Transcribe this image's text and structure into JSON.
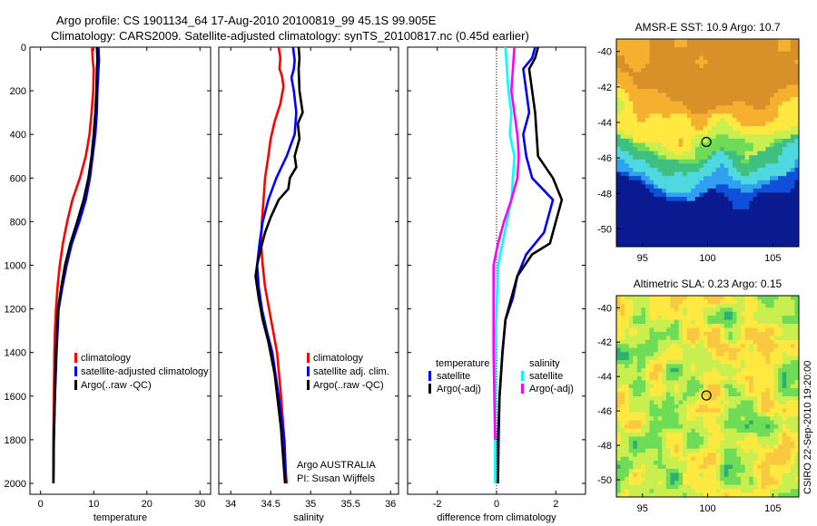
{
  "header": {
    "line1": "Argo profile: CS 1901134_64 17-Aug-2010 20100819_99 45.1S 99.905E",
    "line2": "Climatology: CARS2009. Satellite-adjusted climatology: synTS_20100817.nc (0.45d earlier)"
  },
  "credit": "Argo AUSTRALIA",
  "credit_pi": "PI: Susan Wijffels",
  "side_stamp": "CSIRO 22-Sep-2010 19:20:00",
  "chart_data": [
    {
      "type": "line",
      "xlabel": "temperature",
      "ylabel": "",
      "xlim": [
        -2,
        32
      ],
      "ylim": [
        2050,
        0
      ],
      "y_reversed": true,
      "xticks": [
        0,
        10,
        20,
        30
      ],
      "yticks": [
        0,
        200,
        400,
        600,
        800,
        1000,
        1200,
        1400,
        1600,
        1800,
        2000
      ],
      "legend_position": "lower-right",
      "series": [
        {
          "name": "climatology",
          "color": "#ff0000",
          "x": [
            9.7,
            9.8,
            10.0,
            9.9,
            9.6,
            9.2,
            8.5,
            7.4,
            6.0,
            5.0,
            4.2,
            3.6,
            3.2,
            2.9,
            2.7,
            2.6,
            2.5,
            2.4,
            2.4
          ],
          "y": [
            0,
            60,
            100,
            200,
            300,
            400,
            500,
            600,
            700,
            800,
            900,
            1000,
            1100,
            1200,
            1300,
            1400,
            1600,
            1800,
            2000
          ]
        },
        {
          "name": "satellite-adjusted climatology",
          "color": "#0000ff",
          "x": [
            10.9,
            11.0,
            10.9,
            10.7,
            10.6,
            10.3,
            9.8,
            9.3,
            8.5,
            7.3,
            5.9,
            4.9,
            4.1,
            3.4,
            3.0,
            2.7,
            2.5,
            2.4
          ],
          "y": [
            0,
            60,
            100,
            200,
            300,
            400,
            500,
            600,
            700,
            800,
            900,
            1000,
            1100,
            1200,
            1400,
            1600,
            1800,
            2000
          ]
        },
        {
          "name": "Argo(..raw -QC)",
          "color": "#000000",
          "x": [
            10.6,
            10.7,
            10.6,
            10.5,
            10.3,
            10.0,
            9.6,
            9.0,
            8.1,
            6.9,
            5.6,
            4.6,
            3.9,
            3.3,
            2.9,
            2.7,
            2.5,
            2.4
          ],
          "y": [
            0,
            60,
            100,
            200,
            300,
            400,
            500,
            600,
            700,
            800,
            900,
            1000,
            1100,
            1200,
            1400,
            1600,
            1800,
            2000
          ]
        }
      ]
    },
    {
      "type": "line",
      "xlabel": "salinity",
      "ylabel": "",
      "xlim": [
        33.85,
        36.1
      ],
      "ylim": [
        2050,
        0
      ],
      "y_reversed": true,
      "xticks": [
        34,
        34.5,
        35,
        35.5,
        36
      ],
      "legend_position": "lower-right",
      "series": [
        {
          "name": "climatology",
          "color": "#ff0000",
          "x": [
            34.6,
            34.62,
            34.61,
            34.64,
            34.66,
            34.62,
            34.55,
            34.5,
            34.47,
            34.43,
            34.41,
            34.39,
            34.38,
            34.4,
            34.43,
            34.48,
            34.53,
            34.58,
            34.63,
            34.67,
            34.69,
            34.7
          ],
          "y": [
            0,
            50,
            100,
            130,
            180,
            260,
            340,
            420,
            500,
            600,
            700,
            800,
            900,
            1000,
            1100,
            1200,
            1300,
            1400,
            1600,
            1800,
            1950,
            2000
          ]
        },
        {
          "name": "satellite adj. clim.",
          "color": "#0000ff",
          "x": [
            34.78,
            34.8,
            34.79,
            34.76,
            34.79,
            34.82,
            34.8,
            34.7,
            34.57,
            34.47,
            34.4,
            34.36,
            34.33,
            34.35,
            34.39,
            34.45,
            34.52,
            34.6,
            34.67,
            34.69
          ],
          "y": [
            0,
            60,
            100,
            140,
            200,
            300,
            400,
            500,
            600,
            700,
            800,
            900,
            1000,
            1100,
            1200,
            1300,
            1400,
            1600,
            1800,
            2000
          ]
        },
        {
          "name": "Argo(..raw -QC)",
          "color": "#000000",
          "x": [
            34.85,
            34.86,
            34.85,
            34.86,
            34.9,
            34.84,
            34.86,
            34.8,
            34.82,
            34.74,
            34.72,
            34.6,
            34.5,
            34.43,
            34.38,
            34.33,
            34.31,
            34.35,
            34.4,
            34.47,
            34.55,
            34.63,
            34.68
          ],
          "y": [
            0,
            50,
            100,
            200,
            300,
            350,
            420,
            500,
            550,
            600,
            650,
            700,
            780,
            850,
            920,
            1000,
            1050,
            1150,
            1250,
            1350,
            1500,
            1750,
            2000
          ]
        }
      ],
      "annotations": [
        "Argo AUSTRALIA",
        "PI: Susan Wijffels"
      ]
    },
    {
      "type": "line",
      "xlabel": "difference from climatology",
      "ylabel": "",
      "xlim": [
        -3.0,
        3.0
      ],
      "ylim": [
        2050,
        0
      ],
      "y_reversed": true,
      "xticks": [
        -2,
        0,
        2
      ],
      "zero_line": "dotted",
      "legend_position": "lower-right",
      "legend_groups": [
        "temperature",
        "salinity"
      ],
      "series": [
        {
          "name": "satellite",
          "group": "temperature",
          "color": "#0000ff",
          "x": [
            1.3,
            1.2,
            0.9,
            1.0,
            1.1,
            0.9,
            1.0,
            1.2,
            1.9,
            1.6,
            1.3,
            1.0,
            0.7,
            0.55,
            0.3,
            0.2,
            0.1,
            0.07,
            0.05
          ],
          "y": [
            0,
            50,
            100,
            200,
            300,
            400,
            500,
            600,
            700,
            850,
            900,
            950,
            1050,
            1150,
            1250,
            1400,
            1600,
            1800,
            2000
          ]
        },
        {
          "name": "Argo(-adj)",
          "group": "temperature",
          "color": "#000000",
          "x": [
            1.4,
            1.3,
            1.1,
            1.2,
            1.3,
            1.35,
            1.4,
            1.9,
            2.2,
            2.0,
            1.8,
            1.2,
            0.7,
            0.5,
            0.3,
            0.2,
            0.1,
            0.05,
            0.05
          ],
          "y": [
            0,
            50,
            100,
            200,
            300,
            400,
            500,
            600,
            700,
            800,
            900,
            950,
            1050,
            1150,
            1250,
            1400,
            1600,
            1800,
            2000
          ]
        },
        {
          "name": "satellite",
          "group": "salinity",
          "color": "#00ffff",
          "x": [
            0.3,
            0.35,
            0.4,
            0.5,
            0.45,
            0.6,
            0.55,
            0.5,
            0.35,
            0.2,
            0.05,
            -0.05,
            -0.05,
            -0.05
          ],
          "y": [
            0,
            100,
            200,
            300,
            400,
            500,
            600,
            700,
            800,
            900,
            1000,
            1400,
            1800,
            2000
          ]
        },
        {
          "name": "Argo(-adj)",
          "group": "salinity",
          "color": "#ff00ff",
          "x": [
            0.6,
            0.55,
            0.5,
            0.6,
            0.7,
            0.75,
            0.7,
            0.5,
            0.25,
            0.05,
            -0.1,
            -0.1,
            -0.05
          ],
          "y": [
            0,
            100,
            200,
            300,
            400,
            500,
            600,
            700,
            800,
            900,
            1000,
            1400,
            1800
          ]
        }
      ]
    },
    {
      "type": "heatmap",
      "title": "AMSR-E SST: 10.9 Argo: 10.7",
      "xlim": [
        93,
        107
      ],
      "ylim": [
        -51,
        -39.3
      ],
      "xticks": [
        95,
        100,
        105
      ],
      "yticks": [
        -40,
        -42,
        -44,
        -46,
        -48,
        -50
      ],
      "marker": {
        "lon": 99.905,
        "lat": -45.1,
        "shape": "circle"
      },
      "front_latitudes": [
        -45.3,
        -45.8,
        -46.7,
        -47.0,
        -46.0,
        -46.6,
        -45.2
      ],
      "front_longitudes": [
        93,
        95,
        97,
        99,
        101,
        103,
        107
      ],
      "palette": [
        "#0a1a90",
        "#1050d8",
        "#30a0f0",
        "#50d8e0",
        "#40c080",
        "#6fdc58",
        "#c8ee50",
        "#ffe840",
        "#f5b030",
        "#d89028"
      ]
    },
    {
      "type": "heatmap",
      "title": "Altimetric SLA: 0.23 Argo: 0.15",
      "xlim": [
        93,
        107
      ],
      "ylim": [
        -51,
        -39.3
      ],
      "xticks": [
        95,
        100,
        105
      ],
      "yticks": [
        -40,
        -42,
        -44,
        -46,
        -48,
        -50
      ],
      "marker": {
        "lon": 99.905,
        "lat": -45.1,
        "shape": "circle"
      },
      "palette": [
        "#30b070",
        "#6fdc58",
        "#c8ee50",
        "#ffe840",
        "#f7c840"
      ]
    }
  ]
}
